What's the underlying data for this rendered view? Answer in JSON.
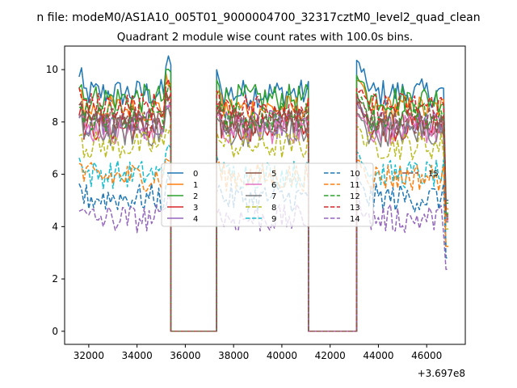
{
  "chart_data": {
    "type": "line",
    "suptitle": "n file: modeM0/AS1A10_005T01_9000004700_32317cztM0_level2_quad_clean",
    "title": "Quadrant 2 module wise count rates with 100.0s bins.",
    "xlabel": "",
    "ylabel": "",
    "x_offset_label": "+3.697e8",
    "xlim": [
      31000,
      47600
    ],
    "ylim": [
      -0.5,
      10.9
    ],
    "x_ticks": [
      32000,
      34000,
      36000,
      38000,
      40000,
      42000,
      44000,
      46000
    ],
    "x_tick_labels": [
      "32000",
      "34000",
      "36000",
      "38000",
      "40000",
      "42000",
      "44000",
      "46000"
    ],
    "y_ticks": [
      0,
      2,
      4,
      6,
      8,
      10
    ],
    "y_tick_labels": [
      "0",
      "2",
      "4",
      "6",
      "8",
      "10"
    ],
    "grid": false,
    "legend_position": "center",
    "legend_columns": 4,
    "segments": [
      {
        "start": 31600,
        "end": 35400
      },
      {
        "start": 37300,
        "end": 41100
      },
      {
        "start": 43100,
        "end": 46950
      }
    ],
    "gaps": [
      {
        "start": 35400,
        "end": 37300
      },
      {
        "start": 41100,
        "end": 43100
      }
    ],
    "series": [
      {
        "name": "0",
        "color": "#1f77b4",
        "dash": "solid",
        "mean": 9.1,
        "peak": 10.3
      },
      {
        "name": "1",
        "color": "#ff7f0e",
        "dash": "solid",
        "mean": 8.5,
        "peak": 9.6
      },
      {
        "name": "2",
        "color": "#2ca02c",
        "dash": "solid",
        "mean": 8.9,
        "peak": 9.9
      },
      {
        "name": "3",
        "color": "#d62728",
        "dash": "solid",
        "mean": 7.8,
        "peak": 8.9
      },
      {
        "name": "4",
        "color": "#9467bd",
        "dash": "solid",
        "mean": 7.9,
        "peak": 8.7
      },
      {
        "name": "5",
        "color": "#8c564b",
        "dash": "solid",
        "mean": 8.0,
        "peak": 8.8
      },
      {
        "name": "6",
        "color": "#e377c2",
        "dash": "solid",
        "mean": 7.7,
        "peak": 8.5
      },
      {
        "name": "7",
        "color": "#7f7f7f",
        "dash": "solid",
        "mean": 7.6,
        "peak": 8.4
      },
      {
        "name": "8",
        "color": "#bcbd22",
        "dash": "dashed",
        "mean": 7.1,
        "peak": 7.8
      },
      {
        "name": "9",
        "color": "#17becf",
        "dash": "dashed",
        "mean": 6.0,
        "peak": 6.9
      },
      {
        "name": "10",
        "color": "#1f77b4",
        "dash": "dashed",
        "mean": 5.1,
        "peak": 5.8
      },
      {
        "name": "11",
        "color": "#ff7f0e",
        "dash": "dashed",
        "mean": 5.9,
        "peak": 6.6
      },
      {
        "name": "12",
        "color": "#2ca02c",
        "dash": "dashed",
        "mean": 8.2,
        "peak": 9.1
      },
      {
        "name": "13",
        "color": "#d62728",
        "dash": "dashed",
        "mean": 8.6,
        "peak": 9.4
      },
      {
        "name": "14",
        "color": "#9467bd",
        "dash": "dashed",
        "mean": 4.3,
        "peak": 5.0
      },
      {
        "name": "15",
        "color": "#8c564b",
        "dash": "dashed",
        "mean": 8.1,
        "peak": 8.9
      }
    ]
  }
}
